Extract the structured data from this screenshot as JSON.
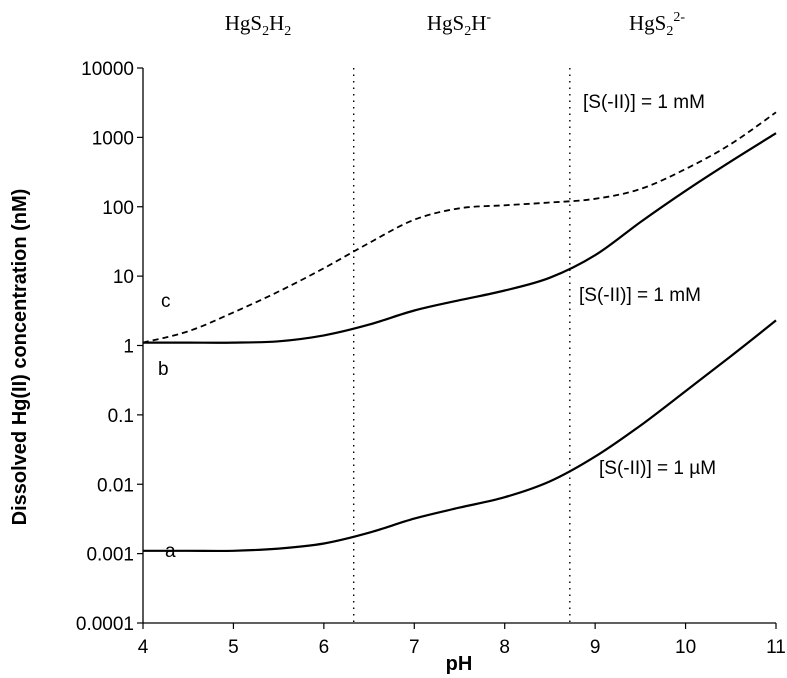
{
  "chart_data": {
    "type": "line",
    "xlabel": "pH",
    "ylabel": "Dissolved Hg(II) concentration (nM)",
    "xlim": [
      4,
      11
    ],
    "ylim": [
      0.0001,
      10000
    ],
    "yscale": "log",
    "grid": false,
    "x_ticks": [
      "4",
      "5",
      "6",
      "7",
      "8",
      "9",
      "10",
      "11"
    ],
    "y_ticks": [
      "0.0001",
      "0.001",
      "0.01",
      "0.1",
      "1",
      "10",
      "100",
      "1000",
      "10000"
    ],
    "y_tick_values": [
      0.0001,
      0.001,
      0.01,
      0.1,
      1,
      10,
      100,
      1000,
      10000
    ],
    "boundaries": [
      6.33,
      8.72
    ],
    "regions": [
      {
        "base": "HgS",
        "sub1": "2",
        "mid": "H",
        "sub2": "2",
        "sup": ""
      },
      {
        "base": "HgS",
        "sub1": "2",
        "mid": "H",
        "sub2": "",
        "sup": "-"
      },
      {
        "base": "HgS",
        "sub1": "2",
        "mid": "",
        "sub2": "",
        "sup": "2-"
      }
    ],
    "series": [
      {
        "letter": "a",
        "label": "[S(-II)] = 1 µM",
        "style": "solid",
        "x": [
          4.0,
          4.5,
          5.0,
          5.5,
          6.0,
          6.5,
          7.0,
          7.5,
          8.0,
          8.5,
          9.0,
          9.5,
          10.0,
          10.5,
          11.0
        ],
        "y": [
          0.0011,
          0.0011,
          0.0011,
          0.00118,
          0.0014,
          0.002,
          0.0032,
          0.0046,
          0.0065,
          0.011,
          0.025,
          0.07,
          0.22,
          0.7,
          2.3
        ]
      },
      {
        "letter": "b",
        "label": "[S(-II)] = 1 mM",
        "style": "solid",
        "x": [
          4.0,
          4.5,
          5.0,
          5.5,
          6.0,
          6.5,
          7.0,
          7.5,
          8.0,
          8.5,
          9.0,
          9.5,
          10.0,
          10.5,
          11.0
        ],
        "y": [
          1.1,
          1.1,
          1.1,
          1.15,
          1.4,
          2.0,
          3.2,
          4.5,
          6.2,
          9.5,
          20,
          60,
          170,
          450,
          1150
        ]
      },
      {
        "letter": "c",
        "label": "[S(-II)] = 1 mM",
        "style": "dashed",
        "x": [
          4.0,
          4.5,
          5.0,
          5.5,
          6.0,
          6.5,
          7.0,
          7.5,
          8.0,
          8.5,
          9.0,
          9.5,
          10.0,
          10.5,
          11.0
        ],
        "y": [
          1.1,
          1.6,
          3.0,
          6.0,
          13,
          30,
          65,
          95,
          105,
          115,
          130,
          180,
          350,
          800,
          2300
        ]
      }
    ]
  }
}
